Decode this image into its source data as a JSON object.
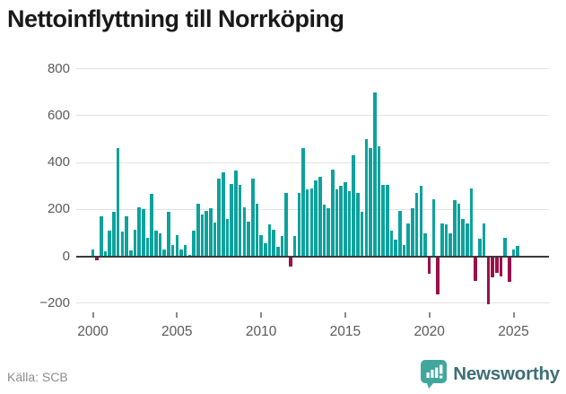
{
  "title": "Nettoinflyttning till Norrköping",
  "source": "Källa: SCB",
  "logo": {
    "text": "Newsworthy"
  },
  "colors": {
    "positive": "#0da29c",
    "negative": "#9b1049",
    "grid": "#e2e2e2",
    "zero_line": "#3a3a3a",
    "axis_text": "#5a5a5b",
    "title_text": "#191919",
    "source_text": "#8c8c8c",
    "logo_text": "#3e6e76",
    "logo_icon": "#41a79d"
  },
  "chart_data": {
    "type": "bar",
    "title": "Nettoinflyttning till Norrköping",
    "period": "quarterly",
    "start_year": 2000,
    "start_quarter": 1,
    "ylabel": "",
    "xlabel": "",
    "ylim": [
      -280,
      840
    ],
    "grid": "horizontal",
    "y_ticks": [
      800,
      600,
      400,
      200,
      0,
      -200
    ],
    "x_ticks": [
      2000,
      2005,
      2010,
      2015,
      2020,
      2025
    ],
    "values": [
      30,
      -15,
      170,
      20,
      110,
      190,
      460,
      105,
      170,
      25,
      115,
      210,
      200,
      80,
      265,
      110,
      100,
      30,
      190,
      50,
      90,
      30,
      50,
      5,
      110,
      225,
      180,
      195,
      205,
      145,
      330,
      360,
      160,
      310,
      365,
      305,
      210,
      150,
      330,
      225,
      90,
      55,
      135,
      115,
      40,
      85,
      270,
      -45,
      85,
      270,
      460,
      285,
      290,
      325,
      340,
      220,
      205,
      370,
      285,
      300,
      315,
      280,
      430,
      270,
      190,
      500,
      460,
      700,
      470,
      305,
      305,
      110,
      70,
      195,
      50,
      140,
      205,
      270,
      300,
      100,
      -75,
      245,
      -160,
      140,
      135,
      100,
      240,
      225,
      160,
      140,
      290,
      -105,
      75,
      140,
      -205,
      -90,
      -70,
      -85,
      80,
      -110,
      30,
      45
    ]
  }
}
